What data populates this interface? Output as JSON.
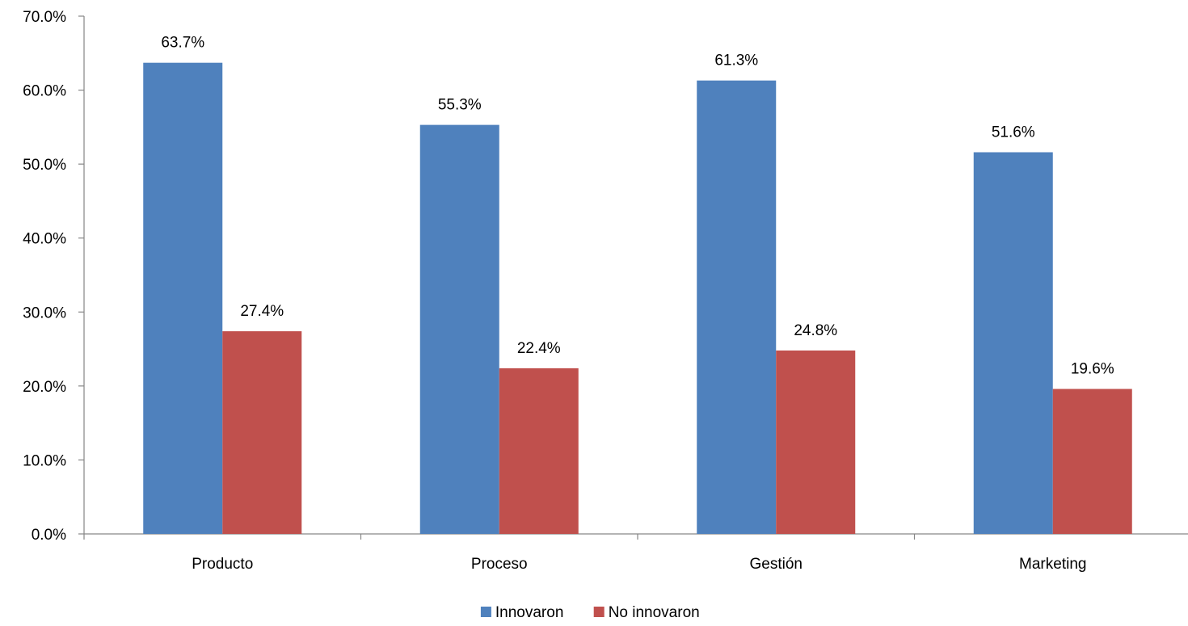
{
  "chart_data": {
    "type": "bar",
    "title": "",
    "xlabel": "",
    "ylabel": "",
    "categories": [
      "Producto",
      "Proceso",
      "Gestión",
      "Marketing"
    ],
    "series": [
      {
        "name": "Innovaron",
        "color": "#4F81BD",
        "values": [
          63.7,
          55.3,
          61.3,
          51.6
        ],
        "labels": [
          "63.7%",
          "55.3%",
          "61.3%",
          "51.6%"
        ]
      },
      {
        "name": "No innovaron",
        "color": "#C0504D",
        "values": [
          27.4,
          22.4,
          24.8,
          19.6
        ],
        "labels": [
          "27.4%",
          "22.4%",
          "24.8%",
          "19.6%"
        ]
      }
    ],
    "ylim": [
      0,
      70
    ],
    "yticks": [
      0,
      10,
      20,
      30,
      40,
      50,
      60,
      70
    ],
    "ytick_labels": [
      "0.0%",
      "10.0%",
      "20.0%",
      "30.0%",
      "40.0%",
      "50.0%",
      "60.0%",
      "70.0%"
    ],
    "grid": false,
    "legend_position": "bottom"
  }
}
